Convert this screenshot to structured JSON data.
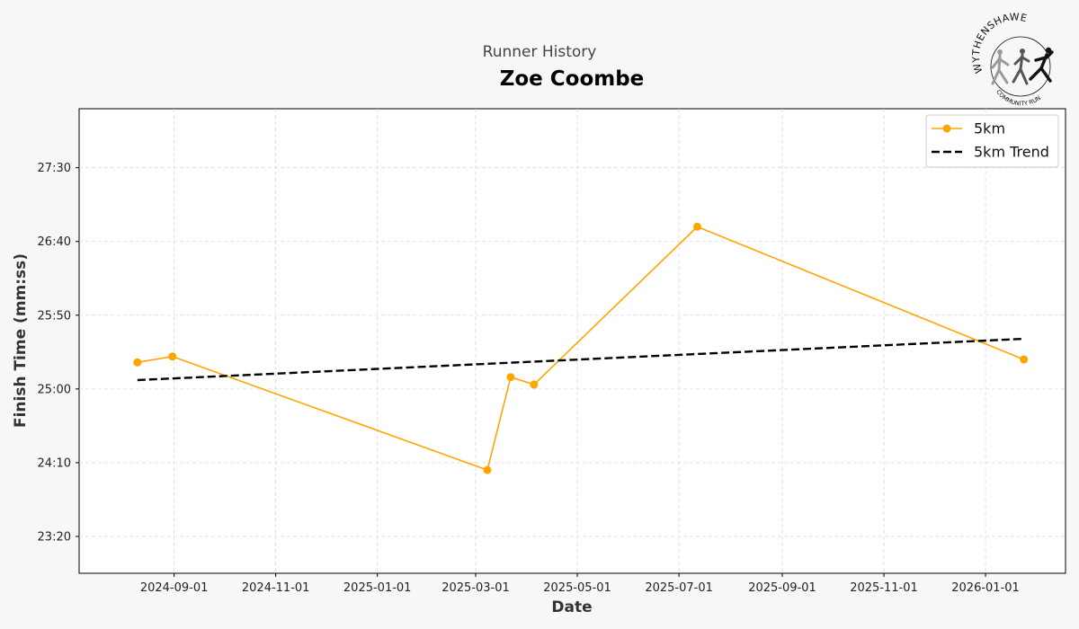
{
  "header": {
    "subtitle": "Runner History",
    "title": "Zoe Coombe"
  },
  "logo": {
    "top_text": "WYTHENSHAWE",
    "bottom_text": "COMMUNITY RUN",
    "icon": "running-figures-logo"
  },
  "chart_data": {
    "type": "line",
    "xlabel": "Date",
    "ylabel": "Finish Time (mm:ss)",
    "x_ticks": [
      "2024-09-01",
      "2024-11-01",
      "2025-01-01",
      "2025-03-01",
      "2025-05-01",
      "2025-07-01",
      "2025-09-01",
      "2025-11-01",
      "2026-01-01"
    ],
    "y_ticks": [
      "23:20",
      "24:10",
      "25:00",
      "25:50",
      "26:40",
      "27:30"
    ],
    "xlim": [
      "2024-07-06",
      "2026-02-18"
    ],
    "ylim": [
      "22:55",
      "28:10"
    ],
    "grid": true,
    "legend_position": "top-right",
    "series": [
      {
        "name": "5km",
        "color": "#FFA500",
        "marker": "circle",
        "points": [
          {
            "x": "2024-08-10",
            "y": "25:18"
          },
          {
            "x": "2024-08-31",
            "y": "25:22"
          },
          {
            "x": "2025-03-08",
            "y": "24:05"
          },
          {
            "x": "2025-03-22",
            "y": "25:08"
          },
          {
            "x": "2025-04-05",
            "y": "25:03"
          },
          {
            "x": "2025-07-12",
            "y": "26:50"
          },
          {
            "x": "2026-01-24",
            "y": "25:20"
          }
        ]
      },
      {
        "name": "5km Trend",
        "color": "#000000",
        "style": "dashed",
        "points": [
          {
            "x": "2024-08-10",
            "y": "25:06"
          },
          {
            "x": "2026-01-24",
            "y": "25:34"
          }
        ]
      }
    ]
  }
}
